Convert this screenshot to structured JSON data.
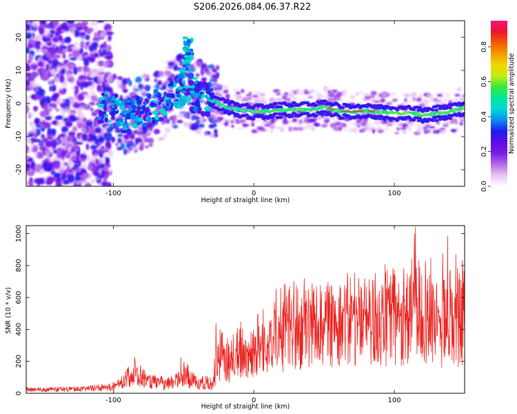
{
  "title": "S206.2026.084.06.37.R22",
  "chart_data": [
    {
      "type": "heatmap",
      "title": "S206.2026.084.06.37.R22",
      "xlabel": "Height of straight line (km)",
      "ylabel": "Frequency (Hz)",
      "xlim": [
        -162,
        150
      ],
      "ylim": [
        -25,
        25
      ],
      "x_ticks": [
        -100,
        0,
        100
      ],
      "y_ticks": [
        20,
        10,
        0,
        -10,
        -20
      ],
      "x_tick_labels": [
        "-100",
        "0",
        "100"
      ],
      "y_tick_labels": [
        "20",
        "10",
        "0",
        "-10",
        "-20"
      ],
      "colorbar": {
        "label": "Normalized spectral amplitude",
        "range": [
          0,
          0.95
        ],
        "ticks": [
          0.0,
          0.2,
          0.4,
          0.6,
          0.8
        ],
        "tick_labels": [
          "0.0",
          "0.2",
          "0.4",
          "0.6",
          "0.8"
        ],
        "colors": [
          "#ffffff",
          "#e7c3f5",
          "#b36ae8",
          "#7a1ae6",
          "#5a0ee8",
          "#1c1cf0",
          "#0a8cf0",
          "#00d8d8",
          "#00e89a",
          "#34ea3a",
          "#c8ec10",
          "#f2d600",
          "#f59a00",
          "#f25a00",
          "#f01430",
          "#f0157a"
        ]
      },
      "ridge": {
        "description_points_x": [
          -110,
          -100,
          -90,
          -80,
          -70,
          -60,
          -50,
          -40,
          -30,
          -20,
          -10,
          0,
          10,
          20,
          30,
          40,
          50,
          60,
          70,
          80,
          90,
          100,
          110,
          120,
          130,
          140,
          148
        ],
        "description_points_y": [
          -1.5,
          -2,
          -4,
          -3,
          -1,
          2,
          5,
          2,
          1,
          -1,
          -2,
          -2.5,
          -2.3,
          -2,
          -1.8,
          -2,
          -1,
          -2.3,
          -2.5,
          -2.2,
          -2.6,
          -3,
          -2.8,
          -3.5,
          -3,
          -2.5,
          -1.5
        ]
      }
    },
    {
      "type": "line",
      "xlabel": "Height of straight line (km)",
      "ylabel": "SNR (10 * v/v)",
      "xlim": [
        -162,
        150
      ],
      "ylim": [
        0,
        1050
      ],
      "x_ticks": [
        -100,
        0,
        100
      ],
      "y_ticks": [
        0,
        200,
        400,
        600,
        800,
        1000
      ],
      "x_tick_labels": [
        "-100",
        "0",
        "100"
      ],
      "y_tick_labels": [
        "0",
        "200",
        "400",
        "600",
        "800",
        "1000"
      ],
      "series": [
        {
          "name": "SNR",
          "color": "#e8231f",
          "envelope_x": [
            -162,
            -140,
            -120,
            -100,
            -95,
            -90,
            -85,
            -80,
            -75,
            -70,
            -65,
            -60,
            -55,
            -50,
            -45,
            -40,
            -35,
            -30,
            -25,
            -20,
            -10,
            0,
            10,
            20,
            30,
            40,
            50,
            60,
            70,
            80,
            90,
            100,
            110,
            115,
            120,
            130,
            140,
            150
          ],
          "envelope_mean": [
            25,
            25,
            30,
            40,
            60,
            100,
            120,
            100,
            70,
            60,
            60,
            60,
            80,
            120,
            80,
            60,
            60,
            50,
            200,
            150,
            230,
            260,
            300,
            360,
            400,
            420,
            450,
            470,
            480,
            450,
            460,
            500,
            470,
            520,
            480,
            440,
            460,
            400
          ],
          "envelope_peak": [
            40,
            40,
            45,
            70,
            110,
            180,
            230,
            170,
            120,
            110,
            110,
            100,
            150,
            230,
            160,
            110,
            120,
            110,
            440,
            350,
            450,
            540,
            620,
            700,
            720,
            730,
            700,
            740,
            760,
            780,
            800,
            820,
            870,
            1040,
            900,
            870,
            980,
            830
          ],
          "highlights": [
            [
              115,
              1040
            ],
            [
              138,
              985
            ],
            [
              -27,
              440
            ],
            [
              -85,
              225
            ],
            [
              -52,
              225
            ]
          ]
        }
      ]
    }
  ]
}
